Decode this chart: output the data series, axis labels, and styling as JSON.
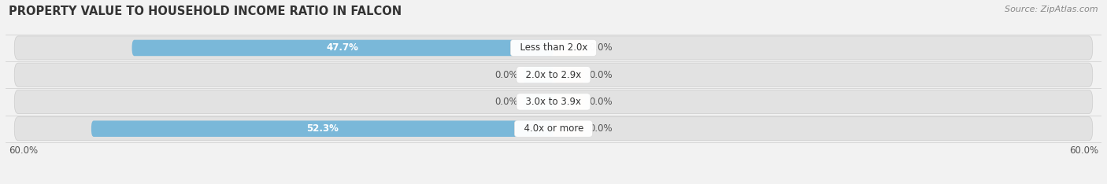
{
  "title": "PROPERTY VALUE TO HOUSEHOLD INCOME RATIO IN FALCON",
  "source": "Source: ZipAtlas.com",
  "categories": [
    "Less than 2.0x",
    "2.0x to 2.9x",
    "3.0x to 3.9x",
    "4.0x or more"
  ],
  "without_mortgage": [
    47.7,
    0.0,
    0.0,
    52.3
  ],
  "with_mortgage": [
    0.0,
    0.0,
    0.0,
    0.0
  ],
  "with_mortgage_stub": 3.5,
  "without_mortgage_stub": 3.5,
  "xlim_left": -62.0,
  "xlim_right": 62.0,
  "x_tick_left": -60.0,
  "x_tick_right": 60.0,
  "bar_height": 0.6,
  "color_without": "#7ab8d9",
  "color_with": "#f0c497",
  "color_label_bg": "white",
  "bg_color": "#f2f2f2",
  "row_bg_color": "#e2e2e2",
  "title_fontsize": 10.5,
  "source_fontsize": 8,
  "label_fontsize": 8.5,
  "tick_fontsize": 8.5,
  "legend_fontsize": 8.5
}
